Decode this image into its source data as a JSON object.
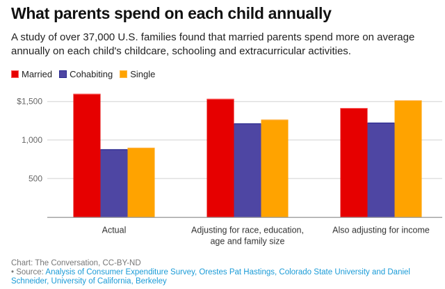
{
  "title": "What parents spend on each child annually",
  "subtitle": "A study of over 37,000 U.S. families found that married parents spend more on average annually on each child's childcare, schooling and extracurricular activities.",
  "footer": {
    "credit": "Chart: The Conversation, CC-BY-ND",
    "source_prefix": "• Source: ",
    "source_link": "Analysis of Consumer Expenditure Survey, Orestes Pat Hastings, Colorado State University and Daniel Schneider, University of California, Berkeley"
  },
  "chart_data": {
    "type": "bar",
    "title": "What parents spend on each child annually",
    "xlabel": "",
    "ylabel": "",
    "ylim": [
      0,
      1650
    ],
    "grid": true,
    "legend_position": "top-left",
    "categories": [
      [
        "Actual"
      ],
      [
        "Adjusting for race, education,",
        "age and family size"
      ],
      [
        "Also adjusting for income"
      ]
    ],
    "yticks": [
      {
        "value": 500,
        "label": "500"
      },
      {
        "value": 1000,
        "label": "1,000"
      },
      {
        "value": 1500,
        "label": "$1,500"
      }
    ],
    "series": [
      {
        "name": "Married",
        "color": "#e60000",
        "values": [
          1600,
          1535,
          1415
        ]
      },
      {
        "name": "Cohabiting",
        "color": "#4e46a3",
        "values": [
          880,
          1215,
          1225
        ]
      },
      {
        "name": "Single",
        "color": "#ffa300",
        "values": [
          900,
          1265,
          1515
        ]
      }
    ]
  }
}
